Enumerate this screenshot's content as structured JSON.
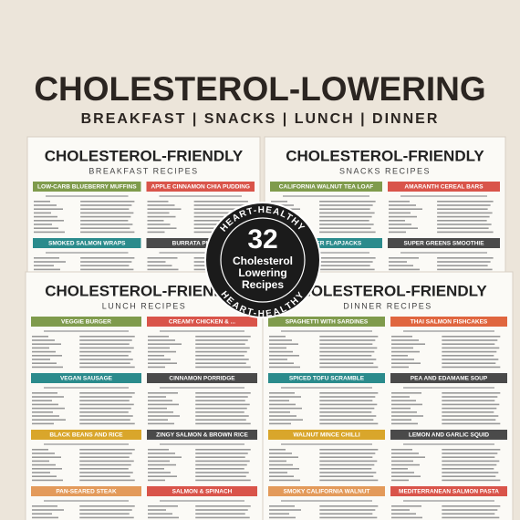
{
  "header": {
    "title": "CHOLESTEROL-LOWERING",
    "subtitle": "BREAKFAST | SNACKS | LUNCH | DINNER"
  },
  "pages": [
    {
      "title": "CHOLESTEROL-FRIENDLY",
      "subtitle": "BREAKFAST RECIPES",
      "recipes": [
        {
          "name": "LOW-CARB BLUEBERRY MUFFINS",
          "color": "#7f9b4c"
        },
        {
          "name": "APPLE CINNAMON CHIA PUDDING",
          "color": "#d9544a"
        },
        {
          "name": "SMOKED SALMON WRAPS",
          "color": "#2b8b8c"
        },
        {
          "name": "BURRATA PLATTER",
          "color": "#4a4a4a"
        }
      ]
    },
    {
      "title": "CHOLESTEROL-FRIENDLY",
      "subtitle": "SNACKS RECIPES",
      "recipes": [
        {
          "name": "CALIFORNIA WALNUT TEA LOAF",
          "color": "#7f9b4c"
        },
        {
          "name": "AMARANTH CEREAL BARS",
          "color": "#d9544a"
        },
        {
          "name": "HEALTHIER FLAPJACKS",
          "color": "#2b8b8c"
        },
        {
          "name": "SUPER GREENS SMOOTHIE",
          "color": "#4a4a4a"
        }
      ]
    },
    {
      "title": "CHOLESTEROL-FRIENDLY",
      "subtitle": "LUNCH RECIPES",
      "recipes": [
        {
          "name": "VEGGIE BURGER",
          "color": "#7f9b4c"
        },
        {
          "name": "CREAMY CHICKEN & ...",
          "color": "#d9544a"
        },
        {
          "name": "VEGAN SAUSAGE",
          "color": "#2b8b8c"
        },
        {
          "name": "CINNAMON PORRIDGE",
          "color": "#4a4a4a"
        },
        {
          "name": "BLACK BEANS AND RICE",
          "color": "#d9a62b"
        },
        {
          "name": "ZINGY SALMON & BROWN RICE",
          "color": "#4a4a4a"
        },
        {
          "name": "PAN-SEARED STEAK",
          "color": "#e39a5a"
        },
        {
          "name": "SALMON & SPINACH",
          "color": "#d9544a"
        }
      ]
    },
    {
      "title": "CHOLESTEROL-FRIENDLY",
      "subtitle": "DINNER RECIPES",
      "recipes": [
        {
          "name": "SPAGHETTI WITH SARDINES",
          "color": "#7f9b4c"
        },
        {
          "name": "THAI SALMON FISHCAKES",
          "color": "#e0663f"
        },
        {
          "name": "SPICED TOFU SCRAMBLE",
          "color": "#2b8b8c"
        },
        {
          "name": "PEA AND EDAMAME SOUP",
          "color": "#4a4a4a"
        },
        {
          "name": "WALNUT MINCE CHILLI",
          "color": "#d9a62b"
        },
        {
          "name": "LEMON AND GARLIC SQUID",
          "color": "#4a4a4a"
        },
        {
          "name": "SMOKY CALIFORNIA WALNUT",
          "color": "#e39a5a"
        },
        {
          "name": "MEDITERRANEAN SALMON PASTA",
          "color": "#d9544a"
        }
      ]
    }
  ],
  "badge": {
    "ring_text": [
      "HEART-HEALTHY",
      "HEART-HEALTHY"
    ],
    "number": "32",
    "label": [
      "Cholesterol",
      "Lowering",
      "Recipes"
    ]
  }
}
